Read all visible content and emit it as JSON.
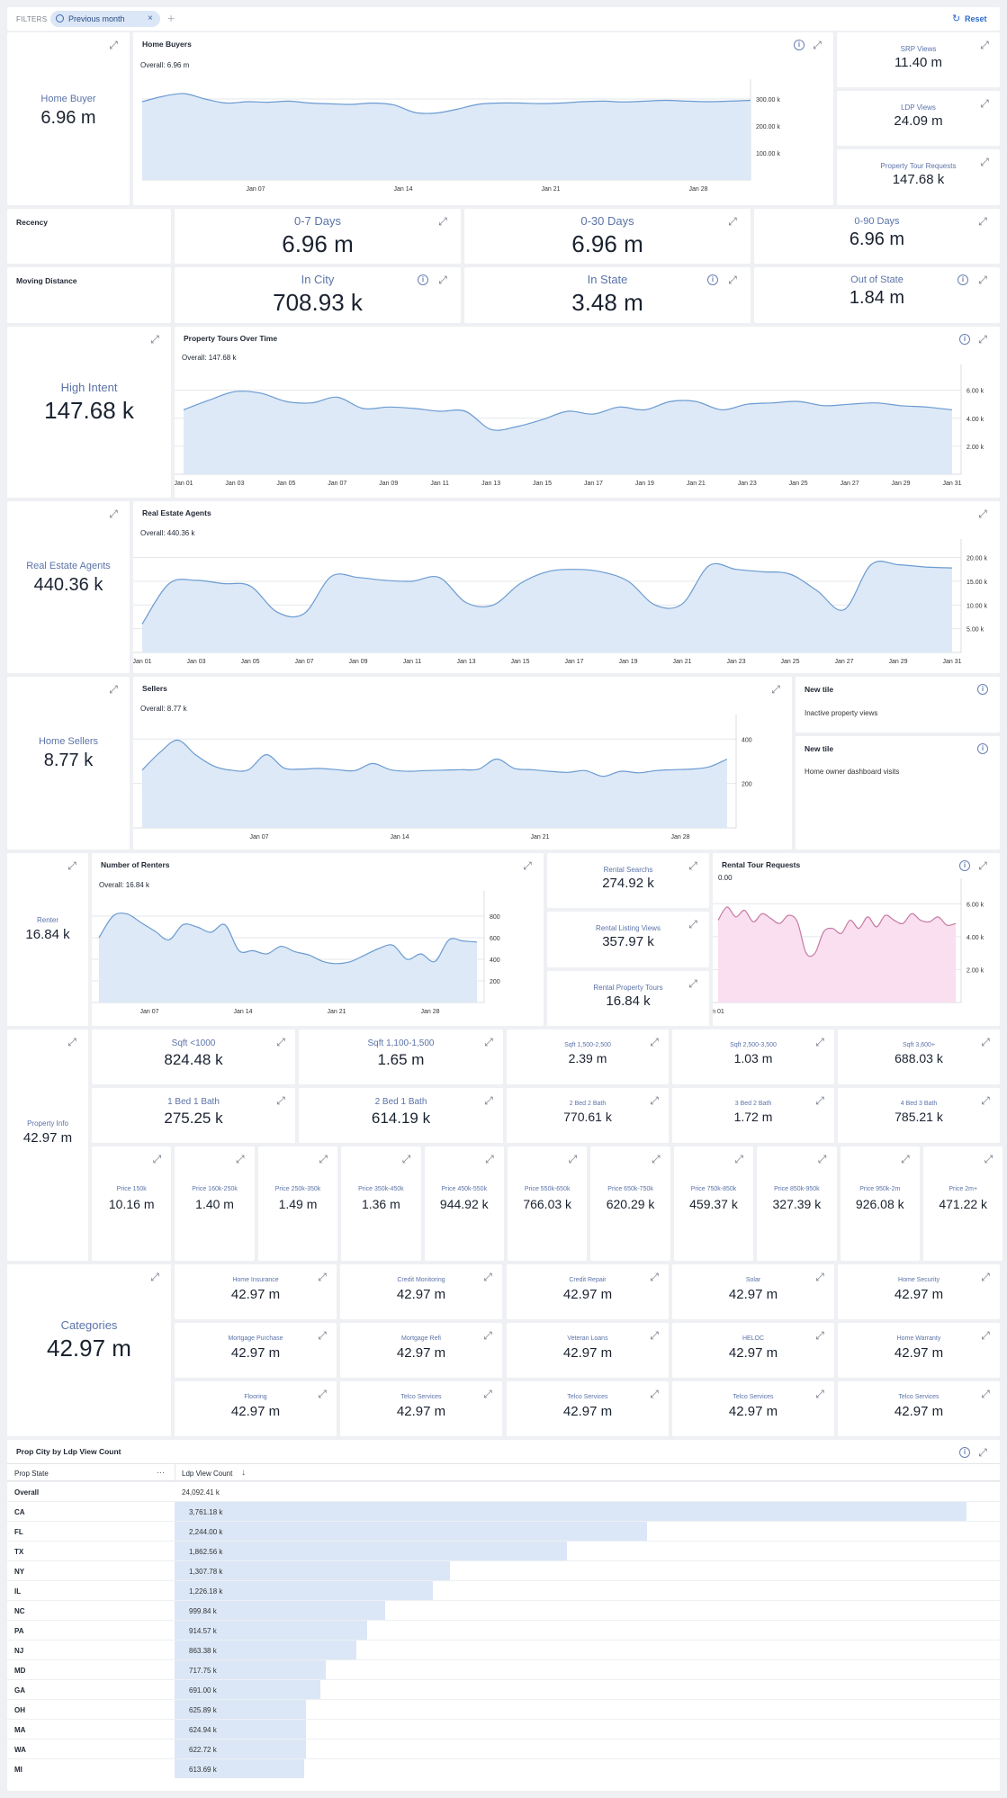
{
  "filters": {
    "label": "FILTERS",
    "chip": "Previous month",
    "reset": "Reset"
  },
  "home_buyer": {
    "label": "Home Buyer",
    "value": "6.96 m"
  },
  "home_buyers_chart": {
    "title": "Home Buyers",
    "overall": "Overall: 6.96 m"
  },
  "srp": {
    "label": "SRP Views",
    "value": "11.40 m"
  },
  "ldp": {
    "label": "LDP Views",
    "value": "24.09 m"
  },
  "ptr": {
    "label": "Property Tour Requests",
    "value": "147.68 k"
  },
  "recency": {
    "label": "Recency",
    "t1l": "0-7 Days",
    "t1v": "6.96 m",
    "t2l": "0-30 Days",
    "t2v": "6.96 m",
    "t3l": "0-90 Days",
    "t3v": "6.96 m"
  },
  "moving": {
    "label": "Moving Distance",
    "t1l": "In City",
    "t1v": "708.93 k",
    "t2l": "In State",
    "t2v": "3.48 m",
    "t3l": "Out of State",
    "t3v": "1.84 m"
  },
  "high_intent": {
    "label": "High Intent",
    "value": "147.68 k"
  },
  "tours_chart": {
    "title": "Property Tours Over Time",
    "overall": "Overall: 147.68 k"
  },
  "agents": {
    "label": "Real Estate Agents",
    "value": "440.36 k"
  },
  "agents_chart": {
    "title": "Real Estate Agents",
    "overall": "Overall: 440.36 k"
  },
  "sellers": {
    "label": "Home Sellers",
    "value": "8.77 k"
  },
  "sellers_chart": {
    "title": "Sellers",
    "overall": "Overall: 8.77 k"
  },
  "new_tile_1": {
    "title": "New tile",
    "text": "Inactive property views"
  },
  "new_tile_2": {
    "title": "New tile",
    "text": "Home owner dashboard visits"
  },
  "renter": {
    "label": "Renter",
    "value": "16.84 k"
  },
  "renters_chart": {
    "title": "Number of Renters",
    "overall": "Overall: 16.84 k"
  },
  "rental_searches": {
    "label": "Rental Searchs",
    "value": "274.92 k"
  },
  "rental_listing": {
    "label": "Rental Listing Views",
    "value": "357.97 k"
  },
  "rental_tours": {
    "label": "Rental Property Tours",
    "value": "16.84 k"
  },
  "rental_tour_chart": {
    "title": "Rental Tour Requests",
    "overall": "0.00"
  },
  "property_info": {
    "label": "Property Info",
    "value": "42.97 m"
  },
  "sqft": [
    {
      "l": "Sqft <1000",
      "v": "824.48 k"
    },
    {
      "l": "Sqft 1,100-1,500",
      "v": "1.65 m"
    },
    {
      "l": "Sqft 1,500-2,500",
      "v": "2.39 m"
    },
    {
      "l": "Sqft 2,500-3,500",
      "v": "1.03 m"
    },
    {
      "l": "Sqft 3,600+",
      "v": "688.03 k"
    }
  ],
  "beds": [
    {
      "l": "1 Bed 1 Bath",
      "v": "275.25 k"
    },
    {
      "l": "2 Bed 1 Bath",
      "v": "614.19 k"
    },
    {
      "l": "2 Bed 2 Bath",
      "v": "770.61 k"
    },
    {
      "l": "3 Bed 2 Bath",
      "v": "1.72 m"
    },
    {
      "l": "4 Bed 3 Bath",
      "v": "785.21 k"
    }
  ],
  "prices": [
    {
      "l": "Price 150k",
      "v": "10.16 m"
    },
    {
      "l": "Price 160k-250k",
      "v": "1.40 m"
    },
    {
      "l": "Price 250k-350k",
      "v": "1.49 m"
    },
    {
      "l": "Price 350k-450k",
      "v": "1.36 m"
    },
    {
      "l": "Price 450k-550k",
      "v": "944.92 k"
    },
    {
      "l": "Price 550k-650k",
      "v": "766.03 k"
    },
    {
      "l": "Price 650k-750k",
      "v": "620.29 k"
    },
    {
      "l": "Price 750k-850k",
      "v": "459.37 k"
    },
    {
      "l": "Price 850k-950k",
      "v": "327.39 k"
    },
    {
      "l": "Price 950k-2m",
      "v": "926.08 k"
    },
    {
      "l": "Price 2m+",
      "v": "471.22 k"
    }
  ],
  "categories": {
    "label": "Categories",
    "value": "42.97 m"
  },
  "cat_tiles": [
    {
      "l": "Home Insurance",
      "v": "42.97 m"
    },
    {
      "l": "Credit Monitoring",
      "v": "42.97 m"
    },
    {
      "l": "Credit Repair",
      "v": "42.97 m"
    },
    {
      "l": "Solar",
      "v": "42.97 m"
    },
    {
      "l": "Home Security",
      "v": "42.97 m"
    },
    {
      "l": "Mortgage Purchase",
      "v": "42.97 m"
    },
    {
      "l": "Mortgage Refi",
      "v": "42.97 m"
    },
    {
      "l": "Veteran Loans",
      "v": "42.97 m"
    },
    {
      "l": "HELOC",
      "v": "42.97 m"
    },
    {
      "l": "Home Warranty",
      "v": "42.97 m"
    },
    {
      "l": "Flooring",
      "v": "42.97 m"
    },
    {
      "l": "Telco Services",
      "v": "42.97 m"
    },
    {
      "l": "Telco Services",
      "v": "42.97 m"
    },
    {
      "l": "Telco Services",
      "v": "42.97 m"
    },
    {
      "l": "Telco Services",
      "v": "42.97 m"
    }
  ],
  "table": {
    "title": "Prop City by Ldp View Count",
    "col1": "Prop State",
    "col2": "Ldp View Count",
    "overall_label": "Overall",
    "overall_value": "24,092.41 k",
    "rows": [
      {
        "s": "CA",
        "v": "3,761.18 k",
        "n": 3761.18
      },
      {
        "s": "FL",
        "v": "2,244.00 k",
        "n": 2244.0
      },
      {
        "s": "TX",
        "v": "1,862.56 k",
        "n": 1862.56
      },
      {
        "s": "NY",
        "v": "1,307.78 k",
        "n": 1307.78
      },
      {
        "s": "IL",
        "v": "1,226.18 k",
        "n": 1226.18
      },
      {
        "s": "NC",
        "v": "999.84 k",
        "n": 999.84
      },
      {
        "s": "PA",
        "v": "914.57 k",
        "n": 914.57
      },
      {
        "s": "NJ",
        "v": "863.38 k",
        "n": 863.38
      },
      {
        "s": "MD",
        "v": "717.75 k",
        "n": 717.75
      },
      {
        "s": "GA",
        "v": "691.00 k",
        "n": 691.0
      },
      {
        "s": "OH",
        "v": "625.89 k",
        "n": 625.89
      },
      {
        "s": "MA",
        "v": "624.94 k",
        "n": 624.94
      },
      {
        "s": "WA",
        "v": "622.72 k",
        "n": 622.72
      },
      {
        "s": "MI",
        "v": "613.69 k",
        "n": 613.69
      }
    ]
  },
  "chart_data": [
    {
      "type": "area",
      "title": "Home Buyers",
      "x_ticks": [
        "Jan 07",
        "Jan 14",
        "Jan 21",
        "Jan 28"
      ],
      "y_ticks": [
        "100.00 k",
        "200.00 k",
        "300.00 k"
      ],
      "ylim": [
        0,
        340000
      ],
      "y": [
        290000,
        310000,
        320000,
        300000,
        285000,
        290000,
        288000,
        292000,
        285000,
        282000,
        280000,
        285000,
        278000,
        250000,
        248000,
        262000,
        280000,
        285000,
        285000,
        283000,
        285000,
        290000,
        292000,
        289000,
        292000,
        295000,
        292000,
        290000,
        292000,
        295000
      ]
    },
    {
      "type": "area",
      "title": "Property Tours Over Time",
      "x_ticks": [
        "Jan 01",
        "Jan 03",
        "Jan 05",
        "Jan 07",
        "Jan 09",
        "Jan 11",
        "Jan 13",
        "Jan 15",
        "Jan 17",
        "Jan 19",
        "Jan 21",
        "Jan 23",
        "Jan 25",
        "Jan 27",
        "Jan 29",
        "Jan 31"
      ],
      "y_ticks": [
        "2.00 k",
        "4.00 k",
        "6.00 k"
      ],
      "ylim": [
        0,
        7200
      ],
      "y": [
        4600,
        5300,
        5900,
        5800,
        5200,
        5100,
        5500,
        4700,
        4800,
        4700,
        4500,
        4500,
        3200,
        3400,
        3900,
        4500,
        4300,
        4800,
        4600,
        5200,
        5200,
        4600,
        5000,
        5100,
        5200,
        4900,
        5000,
        5100,
        4900,
        4800,
        4600
      ]
    },
    {
      "type": "area",
      "title": "Real Estate Agents",
      "x_ticks": [
        "Jan 01",
        "Jan 03",
        "Jan 05",
        "Jan 07",
        "Jan 09",
        "Jan 11",
        "Jan 13",
        "Jan 15",
        "Jan 17",
        "Jan 19",
        "Jan 21",
        "Jan 23",
        "Jan 25",
        "Jan 27",
        "Jan 29",
        "Jan 31"
      ],
      "y_ticks": [
        "5.00 k",
        "10.00 k",
        "15.00 k",
        "20.00 k"
      ],
      "ylim": [
        0,
        22000
      ],
      "y": [
        6000,
        14500,
        15200,
        14500,
        14000,
        8500,
        8200,
        16000,
        15800,
        15200,
        15000,
        15800,
        10500,
        10000,
        14500,
        17000,
        17500,
        17000,
        15000,
        10000,
        10200,
        18300,
        17500,
        17000,
        16500,
        13000,
        9000,
        18500,
        18500,
        18000,
        17800
      ]
    },
    {
      "type": "area",
      "title": "Sellers",
      "x_ticks": [
        "Jan 07",
        "Jan 14",
        "Jan 21",
        "Jan 28"
      ],
      "y_ticks": [
        "200",
        "400"
      ],
      "ylim": [
        0,
        470
      ],
      "y": [
        260,
        340,
        395,
        330,
        280,
        260,
        262,
        330,
        270,
        265,
        268,
        262,
        258,
        290,
        262,
        255,
        258,
        260,
        262,
        265,
        310,
        268,
        262,
        255,
        250,
        258,
        232,
        255,
        248,
        258,
        262,
        265,
        275,
        310
      ]
    },
    {
      "type": "area",
      "title": "Number of Renters",
      "x_ticks": [
        "Jan 07",
        "Jan 14",
        "Jan 21",
        "Jan 28"
      ],
      "y_ticks": [
        "200",
        "400",
        "600",
        "800"
      ],
      "ylim": [
        0,
        950
      ],
      "y": [
        600,
        800,
        820,
        740,
        660,
        580,
        720,
        700,
        650,
        720,
        480,
        480,
        450,
        520,
        470,
        440,
        380,
        360,
        380,
        440,
        500,
        530,
        400,
        450,
        380,
        580,
        570,
        560
      ]
    },
    {
      "type": "area",
      "title": "Rental Tour Requests",
      "x_ticks": [
        "n 01"
      ],
      "y_ticks": [
        "2.00 k",
        "4.00 k",
        "6.00 k"
      ],
      "ylim": [
        0,
        7000
      ],
      "y": [
        5000,
        5800,
        5200,
        5600,
        4900,
        5400,
        5100,
        4800,
        5300,
        4900,
        3000,
        3000,
        4300,
        4500,
        4200,
        5000,
        4500,
        5200,
        4600,
        5300,
        5000,
        4800,
        5400,
        5000,
        4900,
        5200,
        4700,
        4800
      ]
    }
  ]
}
